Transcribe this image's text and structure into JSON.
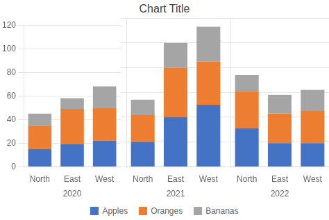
{
  "chart_data": [
    {
      "type": "bar",
      "title": "Chart Title",
      "legend": "bottom",
      "stacked": true,
      "grid": true,
      "xlabel": "2020",
      "categories": [
        "North",
        "East",
        "West"
      ],
      "series": [
        {
          "name": "Apples",
          "color": "#4472C4",
          "values": [
            15,
            19,
            22
          ]
        },
        {
          "name": "Oranges",
          "color": "#ED7D31",
          "values": [
            20,
            30,
            28
          ]
        },
        {
          "name": "Bananas",
          "color": "#A5A5A5",
          "values": [
            10,
            9,
            18
          ]
        }
      ],
      "ylim": [
        0,
        120
      ],
      "yticks": [
        0,
        20,
        40,
        60,
        80,
        100,
        120
      ]
    },
    {
      "type": "bar",
      "stacked": true,
      "grid": true,
      "tick_labels": "x",
      "xlabel": "2021",
      "categories": [
        "North",
        "East",
        "West"
      ],
      "series": [
        {
          "name": "Apples",
          "color": "#4472C4",
          "values": [
            20,
            40,
            50
          ]
        },
        {
          "name": "Oranges",
          "color": "#ED7D31",
          "values": [
            22,
            40,
            35
          ]
        },
        {
          "name": "Bananas",
          "color": "#A5A5A5",
          "values": [
            12,
            20,
            28
          ]
        }
      ],
      "ylim": [
        0,
        120
      ],
      "yticks": [
        0,
        20,
        40,
        60,
        80,
        100,
        120
      ]
    },
    {
      "type": "bar",
      "stacked": true,
      "grid": true,
      "tick_labels": "x",
      "xlabel": "2022",
      "categories": [
        "North",
        "East",
        "West"
      ],
      "series": [
        {
          "name": "Apples",
          "color": "#4472C4",
          "values": [
            31,
            19,
            19
          ]
        },
        {
          "name": "Oranges",
          "color": "#ED7D31",
          "values": [
            30,
            24,
            26
          ]
        },
        {
          "name": "Bananas",
          "color": "#A5A5A5",
          "values": [
            13,
            15,
            17
          ]
        }
      ],
      "ylim": [
        0,
        120
      ],
      "yticks": [
        0,
        20,
        40,
        60,
        80,
        100,
        120
      ]
    }
  ]
}
